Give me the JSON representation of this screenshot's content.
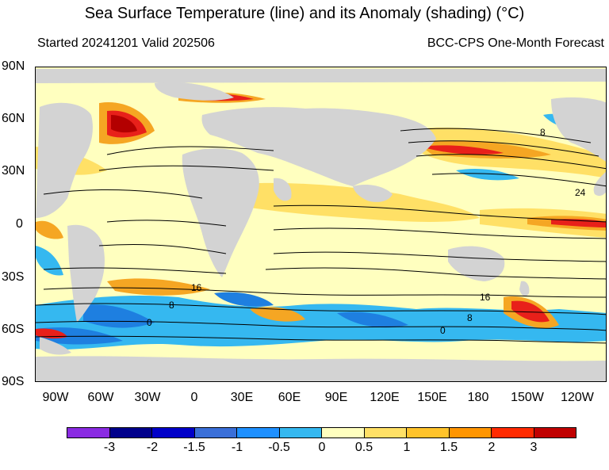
{
  "header": {
    "title": "Sea Surface Temperature (line) and its Anomaly (shading) (°C)",
    "started": "Started 20241201  Valid 202506",
    "source": "BCC-CPS One-Month Forecast"
  },
  "map": {
    "lat_labels": [
      "90N",
      "60N",
      "30N",
      "0",
      "30S",
      "60S",
      "90S"
    ],
    "lon_labels": [
      "90W",
      "60W",
      "30W",
      "0",
      "30E",
      "60E",
      "90E",
      "120E",
      "150E",
      "180",
      "150W",
      "120W"
    ],
    "contour_labels": [
      "8",
      "24",
      "16",
      "8",
      "0",
      "16",
      "8",
      "0"
    ],
    "colors": {
      "land": "#d3d3d3",
      "neutral": "#ffffbf",
      "positive_weak": "#ffe066",
      "positive_mid": "#f5a623",
      "positive_strong": "#e8201a",
      "positive_extreme": "#b30000",
      "negative_weak": "#35b8f0",
      "negative_mid": "#1e7fe0"
    }
  },
  "colorbar": {
    "labels": [
      "-3",
      "-2",
      "-1.5",
      "-1",
      "-0.5",
      "0",
      "0.5",
      "1",
      "1.5",
      "2",
      "3"
    ],
    "colors": [
      "#8a2be2",
      "#00008b",
      "#0000c8",
      "#3a6fd8",
      "#1e90ff",
      "#35b8f0",
      "#ffffbf",
      "#ffe066",
      "#ffc32b",
      "#ff9500",
      "#ff2a00",
      "#c00000"
    ]
  }
}
